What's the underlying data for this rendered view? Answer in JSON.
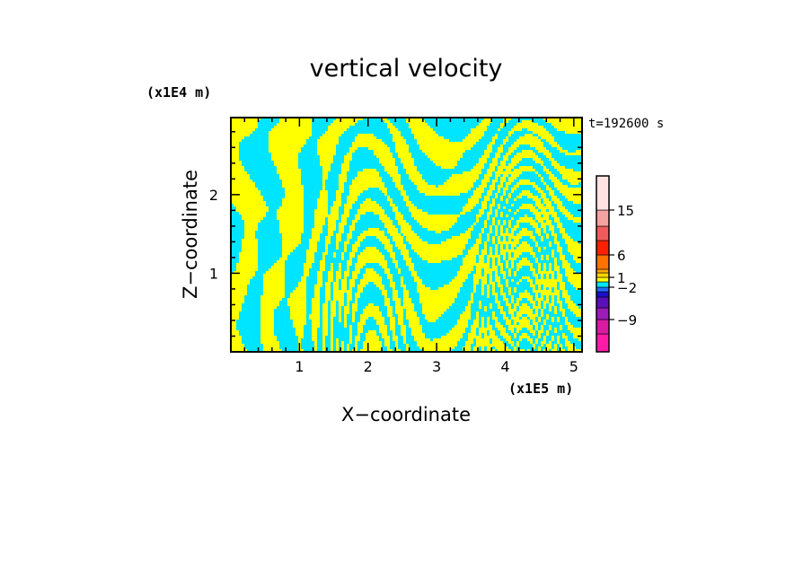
{
  "chart_data": {
    "type": "heatmap",
    "title": "vertical velocity",
    "xlabel": "X−coordinate",
    "ylabel": "Z−coordinate",
    "x_unit": "(x1E5 m)",
    "y_unit": "(x1E4 m)",
    "time_label": "t=192600 s",
    "xlim": [
      0,
      5.12
    ],
    "ylim": [
      0,
      2.98
    ],
    "xticks": [
      1,
      2,
      3,
      4,
      5
    ],
    "yticks": [
      1,
      2
    ],
    "field_colors": {
      "positive": "#ffff00",
      "negative": "#00e5ff"
    },
    "colorbar": {
      "levels": [
        {
          "color": "#ff1aa8"
        },
        {
          "color": "#d81ba0"
        },
        {
          "color": "#9c1ab8"
        },
        {
          "color": "#5a10b8"
        },
        {
          "color": "#1a10c8"
        },
        {
          "color": "#1f6cff"
        },
        {
          "color": "#00e5ff"
        },
        {
          "color": "#ffff00"
        },
        {
          "color": "#ffd500"
        },
        {
          "color": "#ffa800"
        },
        {
          "color": "#ff7200"
        },
        {
          "color": "#ff2000"
        },
        {
          "color": "#ef5b5b"
        },
        {
          "color": "#f5a3a0"
        },
        {
          "color": "#ffe3e3"
        }
      ],
      "tick_labels": [
        "−9",
        "−2",
        "1",
        "6",
        "15"
      ]
    }
  }
}
